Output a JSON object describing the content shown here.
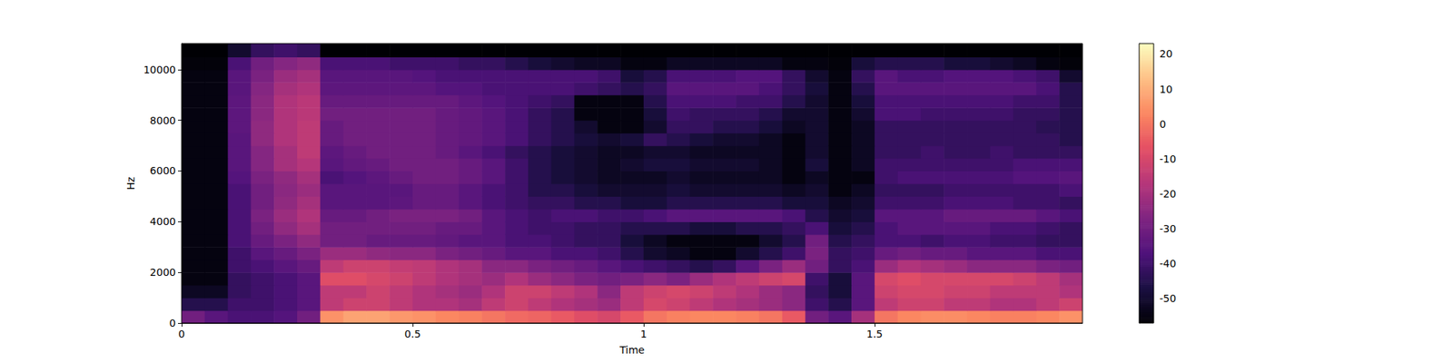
{
  "chart_data": {
    "type": "heatmap",
    "x_label": "Time",
    "y_label": "Hz",
    "xlim": [
      0,
      1.95
    ],
    "ylim": [
      0,
      11025
    ],
    "xticks": [
      0,
      0.5,
      1,
      1.5
    ],
    "yticks": [
      0,
      2000,
      4000,
      6000,
      8000,
      10000
    ],
    "x_bins": [
      0,
      0.05,
      0.1,
      0.15,
      0.2,
      0.25,
      0.3,
      0.35,
      0.4,
      0.45,
      0.5,
      0.55,
      0.6,
      0.65,
      0.7,
      0.75,
      0.8,
      0.85,
      0.9,
      0.95,
      1,
      1.05,
      1.1,
      1.15,
      1.2,
      1.25,
      1.3,
      1.35,
      1.4,
      1.45,
      1.5,
      1.55,
      1.6,
      1.65,
      1.7,
      1.75,
      1.8,
      1.85,
      1.9,
      1.95
    ],
    "y_bins": [
      0,
      500,
      1000,
      1500,
      2000,
      2500,
      3000,
      3500,
      4000,
      4500,
      5000,
      5500,
      6000,
      6500,
      7000,
      7500,
      8000,
      8500,
      9000,
      9500,
      10000,
      10500,
      11025
    ],
    "cells": [
      [
        -30,
        -35,
        -38,
        -38,
        -36,
        -30,
        5,
        8,
        8,
        6,
        5,
        3,
        2,
        0,
        -2,
        -3,
        -5,
        -8,
        -10,
        -5,
        0,
        2,
        3,
        3,
        2,
        0,
        -5,
        -30,
        -35,
        -20,
        0,
        3,
        4,
        4,
        3,
        2,
        2,
        3,
        5
      ],
      [
        -45,
        -45,
        -40,
        -40,
        -38,
        -35,
        -15,
        -12,
        -12,
        -15,
        -18,
        -18,
        -20,
        -15,
        -12,
        -15,
        -18,
        -20,
        -22,
        -15,
        -10,
        -12,
        -15,
        -18,
        -20,
        -22,
        -25,
        -40,
        -45,
        -35,
        -15,
        -12,
        -12,
        -15,
        -15,
        -18,
        -18,
        -15,
        -12
      ],
      [
        -52,
        -52,
        -42,
        -40,
        -38,
        -35,
        -15,
        -15,
        -12,
        -15,
        -18,
        -20,
        -22,
        -18,
        -12,
        -12,
        -15,
        -18,
        -25,
        -15,
        -12,
        -10,
        -12,
        -15,
        -18,
        -22,
        -25,
        -42,
        -48,
        -35,
        -12,
        -10,
        -10,
        -12,
        -12,
        -15,
        -15,
        -15,
        -18
      ],
      [
        -55,
        -55,
        -42,
        -40,
        -38,
        -35,
        -8,
        -8,
        -10,
        -12,
        -15,
        -18,
        -20,
        -22,
        -18,
        -22,
        -25,
        -28,
        -30,
        -28,
        -25,
        -28,
        -22,
        -18,
        -15,
        -12,
        -10,
        -40,
        -48,
        -35,
        -10,
        -8,
        -10,
        -10,
        -10,
        -10,
        -12,
        -15,
        -20
      ],
      [
        -55,
        -55,
        -40,
        -38,
        -35,
        -32,
        -15,
        -12,
        -12,
        -14,
        -15,
        -18,
        -20,
        -25,
        -25,
        -28,
        -30,
        -32,
        -35,
        -38,
        -40,
        -42,
        -45,
        -42,
        -35,
        -28,
        -22,
        -30,
        -42,
        -38,
        -22,
        -18,
        -20,
        -22,
        -25,
        -25,
        -25,
        -28,
        -30
      ],
      [
        -55,
        -55,
        -40,
        -35,
        -32,
        -28,
        -22,
        -22,
        -24,
        -25,
        -25,
        -28,
        -30,
        -32,
        -35,
        -35,
        -38,
        -38,
        -40,
        -45,
        -50,
        -52,
        -55,
        -55,
        -50,
        -45,
        -40,
        -28,
        -42,
        -40,
        -32,
        -30,
        -32,
        -32,
        -35,
        -35,
        -35,
        -38,
        -38
      ],
      [
        -55,
        -55,
        -38,
        -32,
        -28,
        -24,
        -30,
        -30,
        -32,
        -32,
        -32,
        -33,
        -35,
        -35,
        -38,
        -38,
        -40,
        -42,
        -42,
        -48,
        -52,
        -55,
        -55,
        -55,
        -55,
        -50,
        -45,
        -30,
        -45,
        -42,
        -38,
        -38,
        -40,
        -38,
        -38,
        -40,
        -40,
        -42,
        -42
      ],
      [
        -55,
        -55,
        -38,
        -30,
        -24,
        -20,
        -30,
        -30,
        -30,
        -30,
        -30,
        -32,
        -32,
        -35,
        -38,
        -40,
        -40,
        -42,
        -42,
        -45,
        -45,
        -45,
        -48,
        -48,
        -45,
        -45,
        -42,
        -38,
        -48,
        -45,
        -38,
        -35,
        -35,
        -35,
        -35,
        -38,
        -38,
        -40,
        -42
      ],
      [
        -55,
        -55,
        -38,
        -28,
        -22,
        -18,
        -32,
        -32,
        -30,
        -28,
        -28,
        -28,
        -30,
        -35,
        -38,
        -40,
        -38,
        -38,
        -40,
        -40,
        -38,
        -35,
        -35,
        -35,
        -35,
        -35,
        -38,
        -45,
        -50,
        -48,
        -35,
        -35,
        -35,
        -32,
        -32,
        -32,
        -32,
        -35,
        -38
      ],
      [
        -55,
        -55,
        -38,
        -30,
        -24,
        -20,
        -35,
        -35,
        -35,
        -34,
        -32,
        -32,
        -35,
        -38,
        -40,
        -42,
        -42,
        -45,
        -45,
        -48,
        -48,
        -45,
        -45,
        -45,
        -45,
        -45,
        -48,
        -48,
        -52,
        -50,
        -40,
        -40,
        -40,
        -38,
        -38,
        -38,
        -40,
        -40,
        -42
      ],
      [
        -55,
        -55,
        -38,
        -30,
        -25,
        -22,
        -35,
        -35,
        -35,
        -35,
        -32,
        -32,
        -35,
        -38,
        -40,
        -45,
        -45,
        -48,
        -50,
        -50,
        -50,
        -48,
        -50,
        -50,
        -50,
        -50,
        -52,
        -50,
        -55,
        -52,
        -42,
        -42,
        -42,
        -40,
        -40,
        -40,
        -40,
        -40,
        -38
      ],
      [
        -55,
        -55,
        -36,
        -28,
        -24,
        -20,
        -38,
        -36,
        -34,
        -32,
        -30,
        -30,
        -32,
        -35,
        -40,
        -45,
        -48,
        -50,
        -52,
        -52,
        -52,
        -50,
        -52,
        -52,
        -52,
        -52,
        -55,
        -52,
        -55,
        -55,
        -40,
        -38,
        -38,
        -38,
        -38,
        -38,
        -36,
        -36,
        -35
      ],
      [
        -55,
        -55,
        -35,
        -26,
        -20,
        -17,
        -35,
        -33,
        -32,
        -30,
        -30,
        -30,
        -32,
        -35,
        -40,
        -45,
        -48,
        -50,
        -52,
        -50,
        -48,
        -48,
        -50,
        -50,
        -50,
        -52,
        -55,
        -48,
        -55,
        -52,
        -40,
        -40,
        -40,
        -40,
        -40,
        -40,
        -38,
        -38,
        -38
      ],
      [
        -55,
        -55,
        -35,
        -26,
        -20,
        -15,
        -34,
        -32,
        -30,
        -30,
        -30,
        -32,
        -35,
        -38,
        -42,
        -45,
        -48,
        -50,
        -52,
        -52,
        -50,
        -50,
        -52,
        -52,
        -52,
        -52,
        -55,
        -50,
        -55,
        -52,
        -42,
        -42,
        -40,
        -42,
        -42,
        -40,
        -42,
        -42,
        -42
      ],
      [
        -55,
        -55,
        -35,
        -24,
        -18,
        -15,
        -32,
        -30,
        -30,
        -30,
        -30,
        -32,
        -33,
        -35,
        -38,
        -42,
        -45,
        -48,
        -50,
        -48,
        -42,
        -45,
        -48,
        -50,
        -50,
        -52,
        -55,
        -50,
        -55,
        -52,
        -42,
        -42,
        -42,
        -42,
        -42,
        -42,
        -42,
        -42,
        -45
      ],
      [
        -55,
        -55,
        -34,
        -24,
        -18,
        -15,
        -32,
        -30,
        -30,
        -30,
        -30,
        -32,
        -33,
        -35,
        -38,
        -42,
        -45,
        -50,
        -55,
        -55,
        -50,
        -42,
        -42,
        -45,
        -45,
        -48,
        -52,
        -50,
        -55,
        -52,
        -42,
        -42,
        -42,
        -42,
        -42,
        -42,
        -42,
        -44,
        -45
      ],
      [
        -55,
        -55,
        -34,
        -25,
        -18,
        -16,
        -30,
        -30,
        -30,
        -30,
        -30,
        -32,
        -33,
        -35,
        -38,
        -42,
        -45,
        -55,
        -55,
        -55,
        -48,
        -40,
        -42,
        -42,
        -42,
        -45,
        -50,
        -50,
        -55,
        -50,
        -38,
        -38,
        -40,
        -40,
        -40,
        -40,
        -42,
        -42,
        -45
      ],
      [
        -55,
        -55,
        -34,
        -25,
        -18,
        -16,
        -32,
        -32,
        -32,
        -32,
        -32,
        -32,
        -34,
        -36,
        -38,
        -40,
        -42,
        -55,
        -55,
        -55,
        -45,
        -38,
        -38,
        -38,
        -40,
        -40,
        -45,
        -50,
        -55,
        -48,
        -38,
        -38,
        -38,
        -38,
        -38,
        -38,
        -40,
        -40,
        -45
      ],
      [
        -55,
        -55,
        -35,
        -26,
        -20,
        -18,
        -34,
        -34,
        -34,
        -34,
        -34,
        -36,
        -36,
        -38,
        -38,
        -38,
        -38,
        -40,
        -42,
        -45,
        -42,
        -35,
        -35,
        -35,
        -35,
        -38,
        -42,
        -48,
        -55,
        -45,
        -35,
        -35,
        -35,
        -35,
        -35,
        -35,
        -35,
        -38,
        -45
      ],
      [
        -55,
        -55,
        -35,
        -28,
        -22,
        -20,
        -35,
        -35,
        -35,
        -35,
        -36,
        -38,
        -38,
        -38,
        -38,
        -38,
        -38,
        -38,
        -40,
        -48,
        -45,
        -38,
        -38,
        -38,
        -36,
        -36,
        -42,
        -50,
        -55,
        -42,
        -35,
        -38,
        -38,
        -36,
        -36,
        -36,
        -38,
        -40,
        -50
      ],
      [
        -56,
        -56,
        -38,
        -30,
        -26,
        -24,
        -38,
        -38,
        -38,
        -40,
        -40,
        -40,
        -42,
        -42,
        -45,
        -48,
        -50,
        -52,
        -52,
        -55,
        -55,
        -52,
        -52,
        -52,
        -52,
        -52,
        -55,
        -55,
        -56,
        -48,
        -45,
        -45,
        -45,
        -48,
        -48,
        -50,
        -52,
        -55,
        -56
      ],
      [
        -57,
        -57,
        -50,
        -42,
        -40,
        -42,
        -57,
        -57,
        -57,
        -57,
        -57,
        -57,
        -57,
        -57,
        -57,
        -57,
        -57,
        -57,
        -57,
        -57,
        -57,
        -57,
        -57,
        -57,
        -57,
        -57,
        -57,
        -57,
        -57,
        -57,
        -57,
        -57,
        -57,
        -57,
        -57,
        -57,
        -57,
        -57,
        -57
      ]
    ],
    "colorbar": {
      "range": [
        -57,
        23
      ],
      "ticks": [
        -50,
        -40,
        -30,
        -20,
        -10,
        0,
        10,
        20
      ]
    }
  }
}
